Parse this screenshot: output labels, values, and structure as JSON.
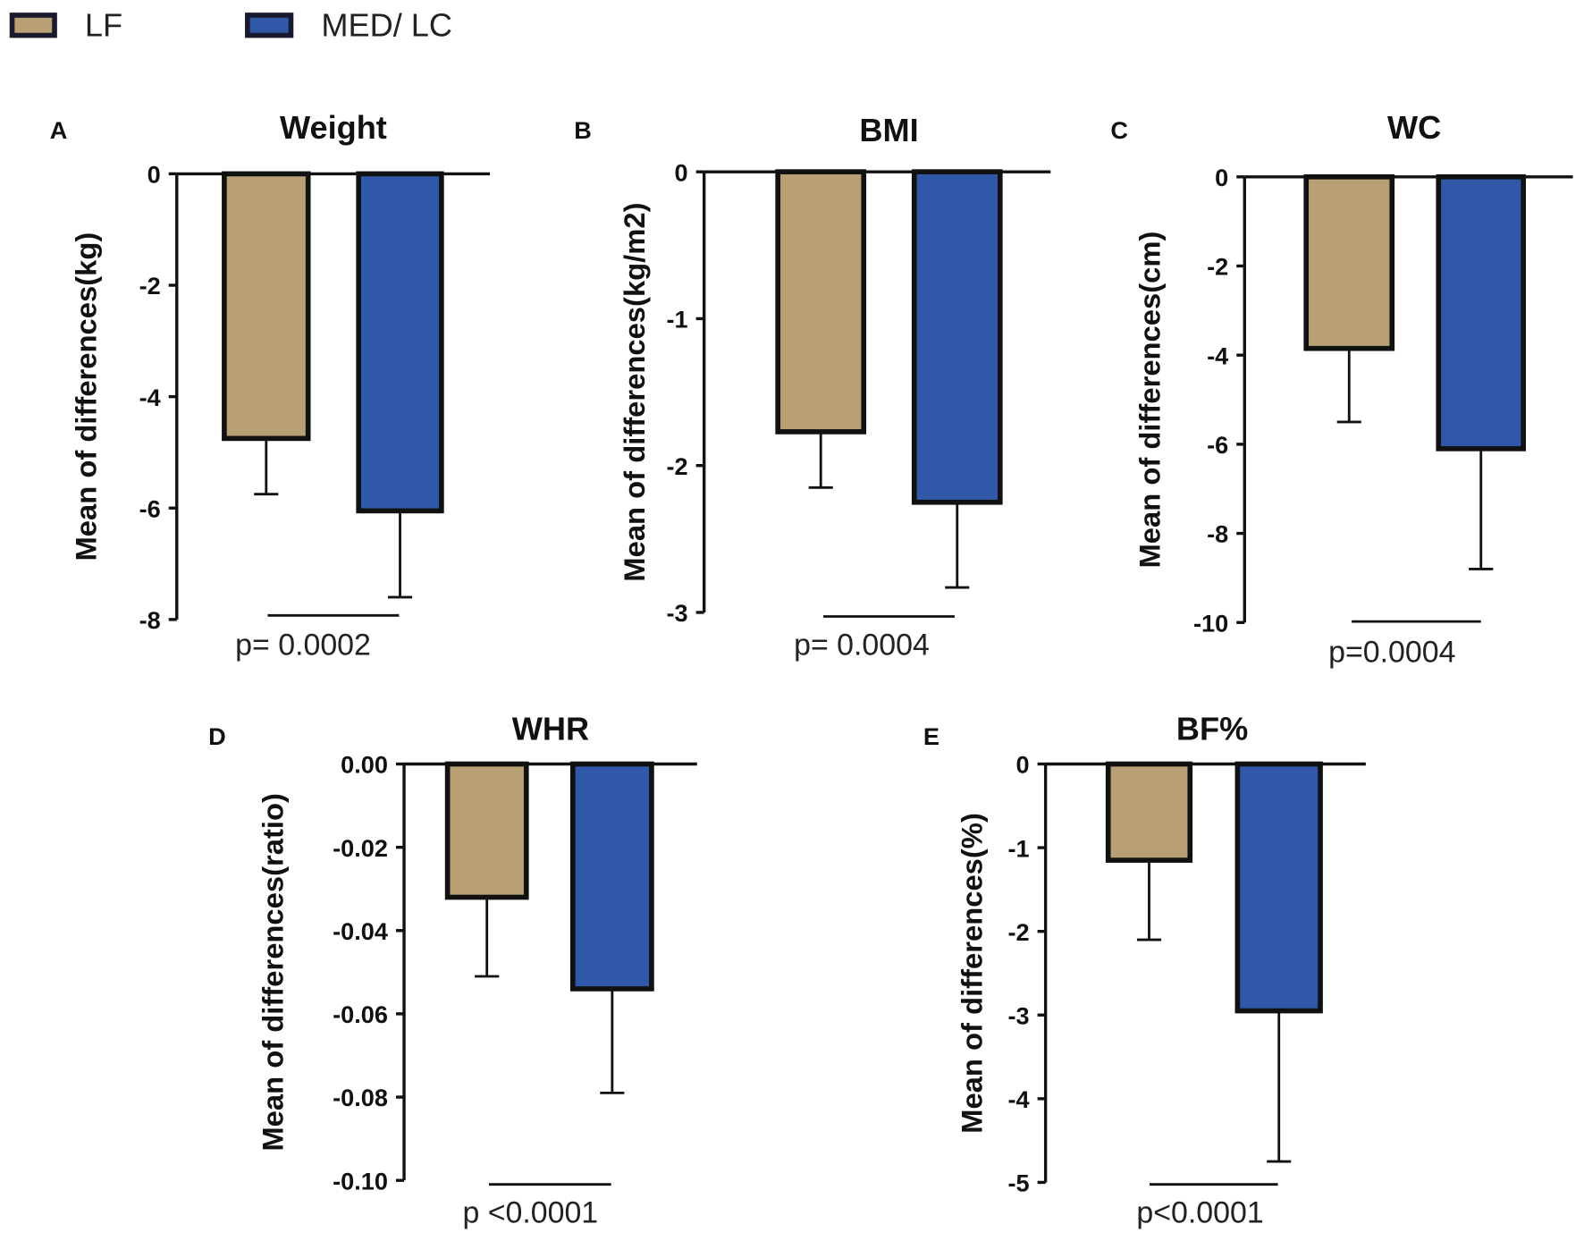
{
  "legend": [
    {
      "label": "LF",
      "color": "#b89f74"
    },
    {
      "label": "MED/ LC",
      "color": "#2f59a8"
    }
  ],
  "chart_data": [
    {
      "type": "bar",
      "panel": "A",
      "title": "Weight",
      "ylabel": "Mean of differences(kg)",
      "categories": [
        "LF",
        "MED/ LC"
      ],
      "values": [
        -4.75,
        -6.05
      ],
      "error_to": [
        -5.75,
        -7.6
      ],
      "ylim": [
        -8,
        0
      ],
      "yticks": [
        "0",
        "-2",
        "-4",
        "-6",
        "-8"
      ],
      "p_value": "p= 0.0002"
    },
    {
      "type": "bar",
      "panel": "B",
      "title": "BMI",
      "ylabel": "Mean of differences(kg/m2)",
      "categories": [
        "LF",
        "MED/ LC"
      ],
      "values": [
        -1.77,
        -2.25
      ],
      "error_to": [
        -2.15,
        -2.83
      ],
      "ylim": [
        -3,
        0
      ],
      "yticks": [
        "0",
        "-1",
        "-2",
        "-3"
      ],
      "p_value": "p= 0.0004"
    },
    {
      "type": "bar",
      "panel": "C",
      "title": "WC",
      "ylabel": "Mean of differences(cm)",
      "categories": [
        "LF",
        "MED/ LC"
      ],
      "values": [
        -3.85,
        -6.1
      ],
      "error_to": [
        -5.5,
        -8.8
      ],
      "ylim": [
        -10,
        0
      ],
      "yticks": [
        "0",
        "-2",
        "-4",
        "-6",
        "-8",
        "-10"
      ],
      "p_value": "p=0.0004"
    },
    {
      "type": "bar",
      "panel": "D",
      "title": "WHR",
      "ylabel": "Mean of differences(ratio)",
      "categories": [
        "LF",
        "MED/ LC"
      ],
      "values": [
        -0.032,
        -0.054
      ],
      "error_to": [
        -0.051,
        -0.079
      ],
      "ylim": [
        -0.1,
        0
      ],
      "yticks": [
        "0.00",
        "-0.02",
        "-0.04",
        "-0.06",
        "-0.08",
        "-0.10"
      ],
      "p_value": "p <0.0001"
    },
    {
      "type": "bar",
      "panel": "E",
      "title": "BF%",
      "ylabel": "Mean of differences(%)",
      "categories": [
        "LF",
        "MED/ LC"
      ],
      "values": [
        -1.15,
        -2.95
      ],
      "error_to": [
        -2.1,
        -4.75
      ],
      "ylim": [
        -5,
        0
      ],
      "yticks": [
        "0",
        "-1",
        "-2",
        "-3",
        "-4",
        "-5"
      ],
      "p_value": "p<0.0001"
    }
  ]
}
